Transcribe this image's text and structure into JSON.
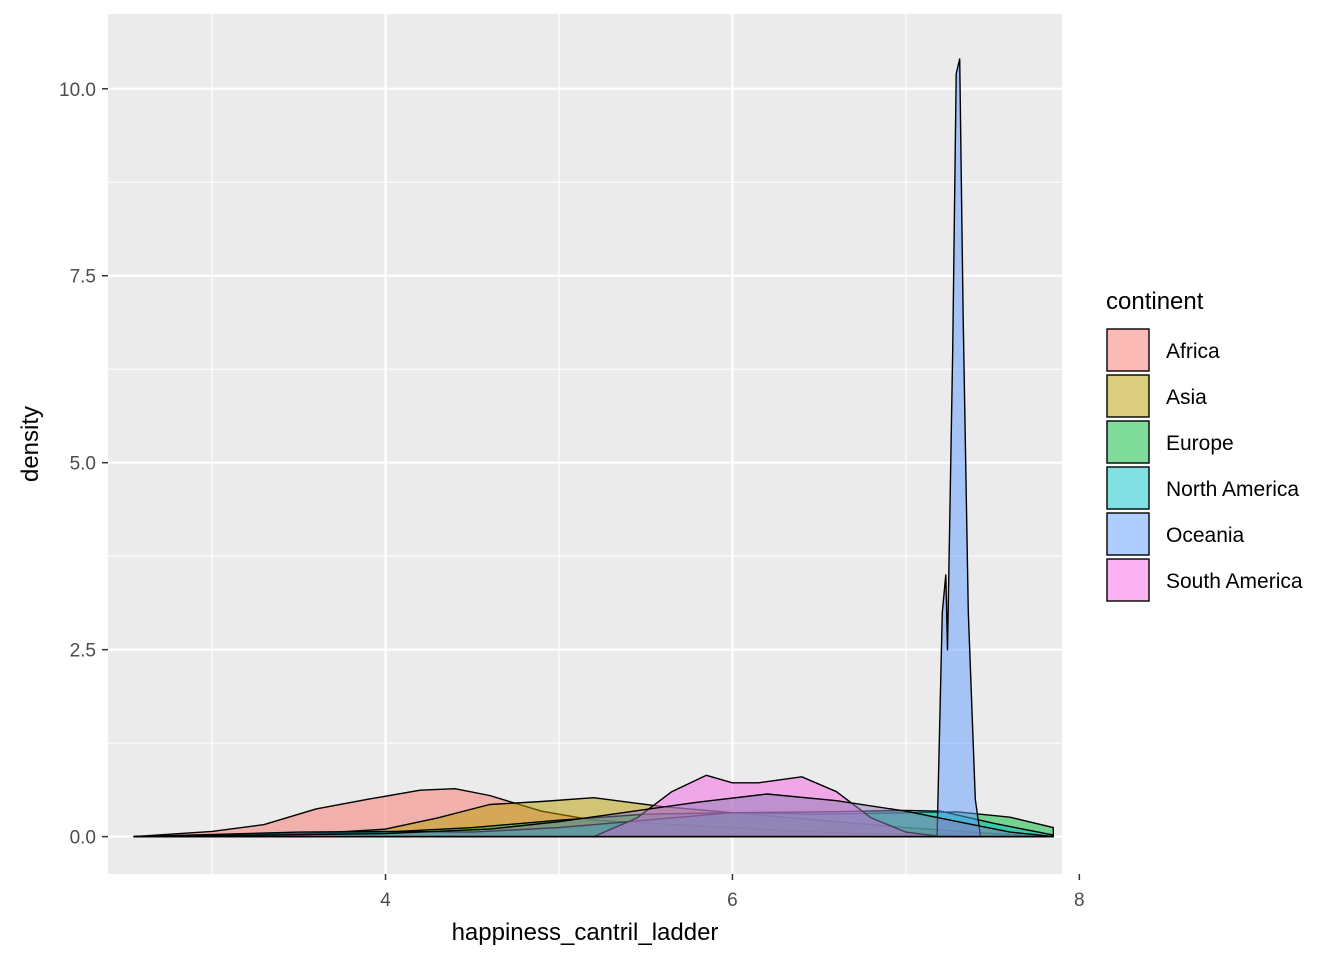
{
  "chart_data": {
    "type": "area",
    "subtype": "density",
    "xlabel": "happiness_cantril_ladder",
    "ylabel": "density",
    "xlim": [
      2.4,
      7.9
    ],
    "ylim": [
      -0.5,
      11.0
    ],
    "x_ticks": [
      4,
      6,
      8
    ],
    "x_tick_labels": [
      "4",
      "6",
      "8"
    ],
    "y_ticks": [
      0.0,
      2.5,
      5.0,
      7.5,
      10.0
    ],
    "y_tick_labels": [
      "0.0",
      "2.5",
      "5.0",
      "7.5",
      "10.0"
    ],
    "grid": true,
    "legend": {
      "title": "continent",
      "position": "right"
    },
    "series": [
      {
        "name": "Africa",
        "color": "#F8766D",
        "x": [
          2.55,
          3.0,
          3.3,
          3.6,
          3.9,
          4.2,
          4.4,
          4.6,
          4.9,
          5.2,
          5.6,
          6.0,
          6.4,
          6.8,
          7.2,
          7.5,
          7.85
        ],
        "y": [
          0.0,
          0.07,
          0.16,
          0.37,
          0.5,
          0.62,
          0.64,
          0.55,
          0.34,
          0.22,
          0.17,
          0.12,
          0.07,
          0.04,
          0.02,
          0.01,
          0.0
        ]
      },
      {
        "name": "Asia",
        "color": "#B79F00",
        "x": [
          2.55,
          3.5,
          4.0,
          4.3,
          4.6,
          4.9,
          5.2,
          5.6,
          6.0,
          6.5,
          7.0,
          7.5,
          7.85
        ],
        "y": [
          0.0,
          0.03,
          0.1,
          0.25,
          0.43,
          0.47,
          0.52,
          0.4,
          0.32,
          0.22,
          0.12,
          0.04,
          0.0
        ]
      },
      {
        "name": "Europe",
        "color": "#00BA38",
        "x": [
          2.55,
          3.5,
          4.0,
          4.5,
          5.0,
          5.5,
          6.0,
          6.5,
          7.0,
          7.3,
          7.6,
          7.85
        ],
        "y": [
          0.0,
          0.04,
          0.06,
          0.12,
          0.22,
          0.3,
          0.32,
          0.3,
          0.32,
          0.33,
          0.26,
          0.12
        ]
      },
      {
        "name": "North America",
        "color": "#00BFC4",
        "x": [
          2.55,
          3.5,
          4.0,
          4.5,
          5.0,
          5.5,
          6.0,
          6.5,
          7.0,
          7.2,
          7.5,
          7.85
        ],
        "y": [
          0.0,
          0.06,
          0.07,
          0.06,
          0.12,
          0.22,
          0.32,
          0.33,
          0.35,
          0.34,
          0.18,
          0.02
        ]
      },
      {
        "name": "Oceania",
        "color": "#619CFF",
        "x": [
          7.18,
          7.21,
          7.23,
          7.24,
          7.27,
          7.29,
          7.31,
          7.33,
          7.36,
          7.4,
          7.43
        ],
        "y": [
          0.0,
          3.0,
          3.5,
          2.5,
          6.5,
          10.2,
          10.4,
          7.0,
          3.0,
          0.5,
          0.0
        ]
      },
      {
        "name": "South America",
        "color": "#F564E3",
        "x": [
          5.2,
          5.45,
          5.65,
          5.85,
          6.0,
          6.15,
          6.4,
          6.6,
          6.8,
          7.0,
          7.2
        ],
        "y": [
          0.0,
          0.25,
          0.6,
          0.82,
          0.72,
          0.72,
          0.8,
          0.6,
          0.25,
          0.06,
          0.0
        ]
      },
      {
        "name": "",
        "legend": false,
        "color": "#8E7AB5",
        "x": [
          2.55,
          4.0,
          4.6,
          5.0,
          5.4,
          5.8,
          6.2,
          6.6,
          7.0,
          7.3,
          7.6,
          7.85
        ],
        "y": [
          0.0,
          0.04,
          0.1,
          0.2,
          0.33,
          0.46,
          0.57,
          0.48,
          0.34,
          0.2,
          0.06,
          0.0
        ]
      }
    ]
  }
}
